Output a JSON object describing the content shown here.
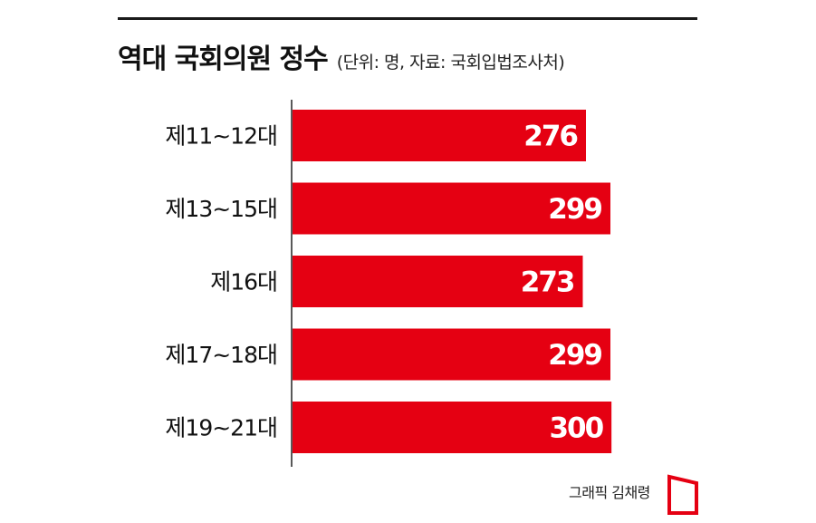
{
  "title": "역대 국회의원 정수",
  "subtitle": "(단위: 명, 자료: 국회입법조사처)",
  "credit": "그래픽 김채령",
  "colors": {
    "bar": "#e50012",
    "axis": "#222222",
    "logo": "#e50012"
  },
  "chart_data": {
    "type": "bar",
    "orientation": "horizontal",
    "title": "역대 국회의원 정수",
    "subtitle": "(단위: 명, 자료: 국회입법조사처)",
    "categories": [
      "제11~12대",
      "제13~15대",
      "제16대",
      "제17~18대",
      "제19~21대"
    ],
    "values": [
      276,
      299,
      273,
      299,
      300
    ],
    "data_labels": [
      "276",
      "299",
      "273",
      "299",
      "300"
    ],
    "xlabel": "",
    "ylabel": "",
    "grid": false,
    "legend": "none"
  }
}
